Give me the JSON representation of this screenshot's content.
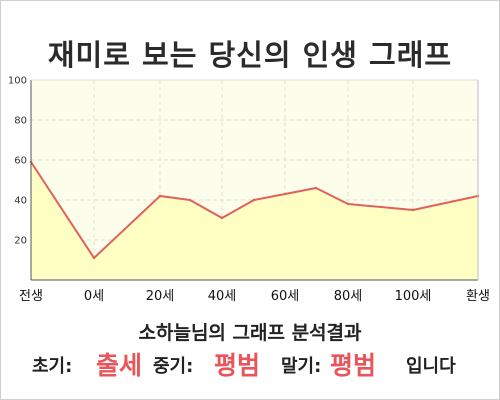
{
  "title": "재미로 보는 당신의 인생 그래프",
  "chart_data": {
    "type": "area",
    "x_labels": [
      "전생",
      "0세",
      "20세",
      "40세",
      "60세",
      "80세",
      "100세",
      "환생"
    ],
    "y_ticks": [
      20,
      40,
      60,
      80,
      100
    ],
    "ylim": [
      0,
      100
    ],
    "points": [
      {
        "x": "전생",
        "y": 59
      },
      {
        "x": "0세",
        "y": 11
      },
      {
        "x": "20세",
        "y": 42
      },
      {
        "x": "30세",
        "y": 40
      },
      {
        "x": "40세",
        "y": 31
      },
      {
        "x": "50세",
        "y": 40
      },
      {
        "x": "60세",
        "y": 43
      },
      {
        "x": "70세",
        "y": 46
      },
      {
        "x": "80세",
        "y": 38
      },
      {
        "x": "100세",
        "y": 35
      },
      {
        "x": "환생",
        "y": 42
      }
    ],
    "grid": true,
    "colors": {
      "line": "#e0605d",
      "fill": "#ffffc4",
      "plot_bg": "#fdfdeb",
      "grid": "#e3e3c8"
    }
  },
  "analysis": {
    "heading": "소하늘님의 그래프 분석결과",
    "early_label": "초기:",
    "early_value": "출세",
    "mid_label": "중기:",
    "mid_value": "평범",
    "late_label": "말기:",
    "late_value": "평범",
    "ending": "입니다"
  }
}
